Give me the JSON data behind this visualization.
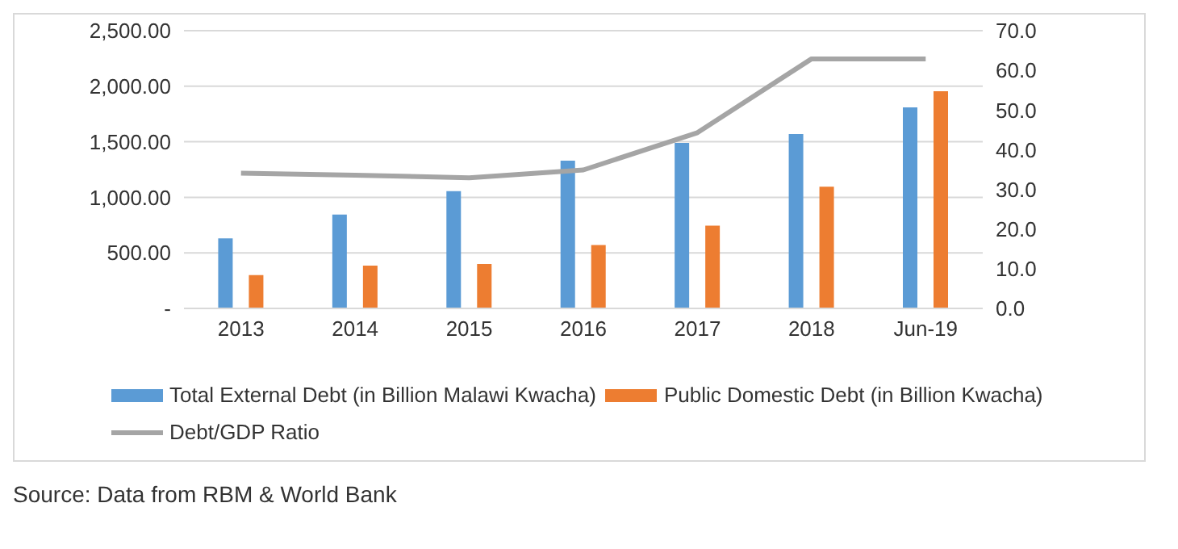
{
  "chart_data": {
    "type": "bar",
    "categories": [
      "2013",
      "2014",
      "2015",
      "2016",
      "2017",
      "2018",
      "Jun-19"
    ],
    "series": [
      {
        "name": "Total External Debt (in Billion Malawi Kwacha)",
        "color": "#5b9bd5",
        "values": [
          630,
          845,
          1055,
          1330,
          1490,
          1570,
          1810
        ]
      },
      {
        "name": "Public Domestic Debt (in Billion Kwacha)",
        "color": "#ed7d31",
        "values": [
          300,
          385,
          400,
          570,
          745,
          1095,
          1955
        ]
      },
      {
        "name": "Debt/GDP Ratio",
        "type": "line",
        "axis": "y2",
        "color": "#a5a5a5",
        "values": [
          34.1,
          33.6,
          32.9,
          34.9,
          44.3,
          62.9,
          62.9
        ]
      }
    ],
    "ylim": [
      0,
      2500
    ],
    "yticks": [
      {
        "value": 0,
        "label": "-"
      },
      {
        "value": 500,
        "label": "500.00"
      },
      {
        "value": 1000,
        "label": "1,000.00"
      },
      {
        "value": 1500,
        "label": "1,500.00"
      },
      {
        "value": 2000,
        "label": "2,000.00"
      },
      {
        "value": 2500,
        "label": "2,500.00"
      }
    ],
    "y2lim": [
      0,
      70
    ],
    "y2ticks": [
      {
        "value": 0,
        "label": "0.0"
      },
      {
        "value": 10,
        "label": "10.0"
      },
      {
        "value": 20,
        "label": "20.0"
      },
      {
        "value": 30,
        "label": "30.0"
      },
      {
        "value": 40,
        "label": "40.0"
      },
      {
        "value": 50,
        "label": "50.0"
      },
      {
        "value": 60,
        "label": "60.0"
      },
      {
        "value": 70,
        "label": "70.0"
      }
    ],
    "grid": "y",
    "legend": "bottom",
    "marker": "none",
    "annotations": [
      "Source: Data from RBM & World Bank"
    ]
  }
}
